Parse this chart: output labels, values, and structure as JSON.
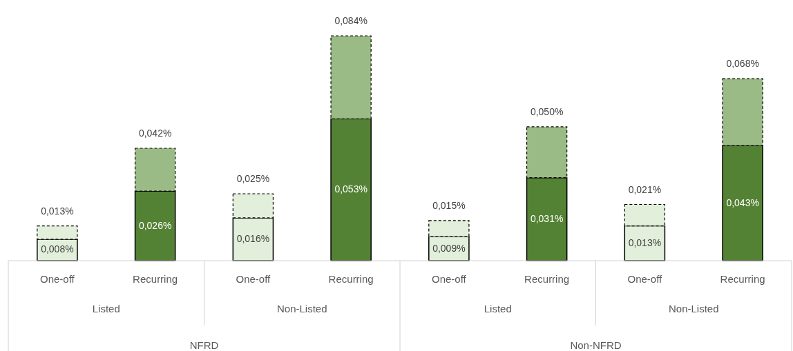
{
  "chart_data": {
    "type": "bar",
    "stacked": true,
    "categories": [
      "One-off",
      "Recurring",
      "One-off",
      "Recurring",
      "One-off",
      "Recurring",
      "One-off",
      "Recurring"
    ],
    "series": [
      {
        "colors": [
          "#e2efda",
          "#548235",
          "#e2efda",
          "#548235",
          "#e2efda",
          "#548235",
          "#e2efda",
          "#548235"
        ],
        "line_style": "solid",
        "values": [
          0.008,
          0.026,
          0.016,
          0.053,
          0.009,
          0.031,
          0.013,
          0.043
        ],
        "value_labels": [
          "0,008%",
          "0,026%",
          "0,016%",
          "0,053%",
          "0,009%",
          "0,031%",
          "0,013%",
          "0,043%"
        ]
      },
      {
        "colors": [
          "#e2efda",
          "#9bbb86",
          "#e2efda",
          "#9bbb86",
          "#e2efda",
          "#9bbb86",
          "#e2efda",
          "#9bbb86"
        ],
        "line_style": "dashed",
        "values": [
          0.005,
          0.016,
          0.009,
          0.031,
          0.006,
          0.019,
          0.008,
          0.025
        ]
      }
    ],
    "totals": [
      "0,013%",
      "0,042%",
      "0,025%",
      "0,084%",
      "0,015%",
      "0,050%",
      "0,021%",
      "0,068%"
    ],
    "annotations": [
      "Listed",
      "Non-Listed",
      "Listed",
      "Non-Listed",
      "NFRD",
      "Non-NFRD"
    ]
  }
}
